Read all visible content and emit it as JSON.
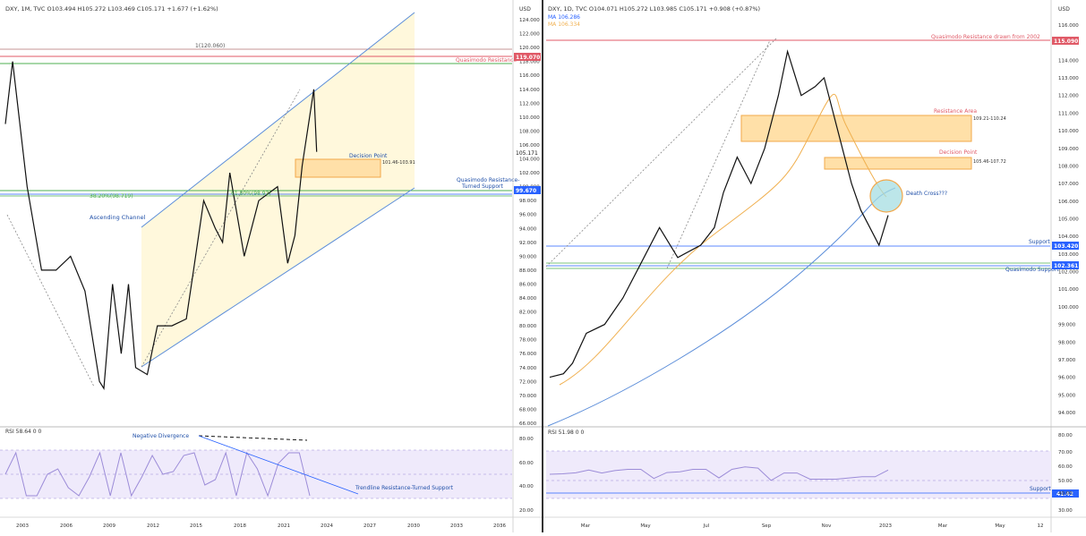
{
  "colors": {
    "accent_blue": "#2962ff",
    "channel_line": "#5b8dd9",
    "quasimodo_red": "#e05a67",
    "green_level": "#4caf50",
    "orange_zone": "#f5c07a",
    "rsi_line": "#9c8cd8",
    "ma_blue": "#5b8dd9",
    "ma_orange": "#f0b050",
    "death_cross": "#7ec8d2"
  },
  "left": {
    "header": "DXY, 1M, TVC  O103.494  H105.272  L103.469  C105.171  +1.677 (+1.62%)",
    "price_axis_unit": "USD",
    "price_ticks": [
      "124.000",
      "122.000",
      "120.000",
      "118.000",
      "116.000",
      "114.000",
      "112.000",
      "110.000",
      "108.000",
      "106.000",
      "104.000",
      "102.000",
      "100.000",
      "98.000",
      "96.000",
      "94.000",
      "92.000",
      "90.000",
      "88.000",
      "86.000",
      "84.000",
      "82.000",
      "80.000",
      "78.000",
      "76.000",
      "74.000",
      "72.000",
      "70.000",
      "68.000",
      "66.000"
    ],
    "time_ticks": [
      "2003",
      "2006",
      "2009",
      "2012",
      "2015",
      "2018",
      "2021",
      "2024",
      "2027",
      "2030",
      "2033",
      "2036"
    ],
    "labels": {
      "fib_top": "1(120.060)",
      "quasimodo_resistance": "Quasimodo Resistance",
      "decision_point": "Decision Point",
      "decision_range": "101.46-103.91",
      "qm_support_line1": "Quasimodo Resistance-",
      "qm_support_line2": "Turned Support",
      "fib_382": "38.20%(98.719)",
      "fib_618": "61.80%(98.93)",
      "ascending_channel": "Ascending Channel"
    },
    "price_badges": {
      "qm_resistance": "119.070",
      "last_price": "105.171",
      "support": "99.670"
    },
    "rsi": {
      "header": "RSI  58.64  0  0",
      "ticks": [
        "80.00",
        "60.00",
        "40.00",
        "20.00"
      ],
      "negative_divergence": "Negative Divergence",
      "trendline_label": "Trendline Resistance-Turned Support"
    },
    "chart_data": {
      "type": "line",
      "title": "DXY 1M",
      "ylim": [
        66,
        125
      ],
      "x": [
        2001.5,
        2002,
        2003,
        2004,
        2005,
        2006,
        2007,
        2008,
        2008.3,
        2008.9,
        2009.5,
        2010,
        2010.5,
        2011.3,
        2012,
        2013,
        2014,
        2014.5,
        2015.2,
        2016,
        2016.5,
        2017,
        2018,
        2019,
        2020.3,
        2021,
        2021.5,
        2022,
        2022.8,
        2023
      ],
      "values": [
        109,
        118,
        100,
        88,
        88,
        90,
        85,
        72,
        71,
        86,
        76,
        86,
        74,
        73,
        80,
        80,
        81,
        88,
        98,
        94,
        92,
        102,
        90,
        98,
        100,
        89,
        93,
        103,
        114,
        105
      ]
    }
  },
  "right": {
    "header": "DXY, 1D, TVC  O104.071  H105.272  L103.985  C105.171  +0.908 (+0.87%)",
    "ma1": "MA  106.286",
    "ma2": "MA  106.334",
    "price_axis_unit": "USD",
    "price_ticks": [
      "116.000",
      "115.000",
      "114.000",
      "113.000",
      "112.000",
      "111.000",
      "110.000",
      "109.000",
      "108.000",
      "107.000",
      "106.000",
      "105.000",
      "104.000",
      "103.000",
      "102.000",
      "101.000",
      "100.000",
      "99.000",
      "98.000",
      "97.000",
      "96.000",
      "95.000",
      "94.000"
    ],
    "time_ticks": [
      "Mar",
      "May",
      "Jul",
      "Sep",
      "Nov",
      "2023",
      "Mar",
      "May",
      "12"
    ],
    "labels": {
      "qm_resistance": "Quasimodo Resistance drawn from 2002",
      "resistance_area": "Resistance Area",
      "resistance_range": "109.21-110.24",
      "decision_point": "Decision Point",
      "decision_range": "105.46-107.72",
      "death_cross": "Death Cross???",
      "support": "Support",
      "qm_support": "Quasimodo Support"
    },
    "price_badges": {
      "qm_resistance": "115.090",
      "support": "103.420",
      "qm_support": "102.361"
    },
    "rsi": {
      "header": "RSI  51.98  0  0",
      "ticks": [
        "80.00",
        "70.00",
        "60.00",
        "50.00",
        "40.00",
        "30.00"
      ],
      "support_label": "Support",
      "support_badge": "41.42"
    },
    "chart_data": {
      "type": "line",
      "title": "DXY 1D",
      "ylim": [
        93.5,
        116.5
      ],
      "x": [
        0,
        3,
        5,
        8,
        12,
        16,
        20,
        24,
        28,
        33,
        36,
        38,
        41,
        44,
        47,
        50,
        52,
        55,
        58,
        60,
        62,
        64,
        66,
        68,
        70,
        72,
        74
      ],
      "values": [
        96.0,
        96.2,
        96.8,
        98.5,
        99.0,
        100.5,
        102.5,
        104.5,
        102.8,
        103.5,
        104.5,
        106.5,
        108.5,
        107.0,
        109.0,
        112.0,
        114.5,
        112.0,
        112.5,
        113.0,
        111.0,
        109.0,
        107.0,
        105.5,
        104.5,
        103.5,
        105.2
      ]
    }
  }
}
